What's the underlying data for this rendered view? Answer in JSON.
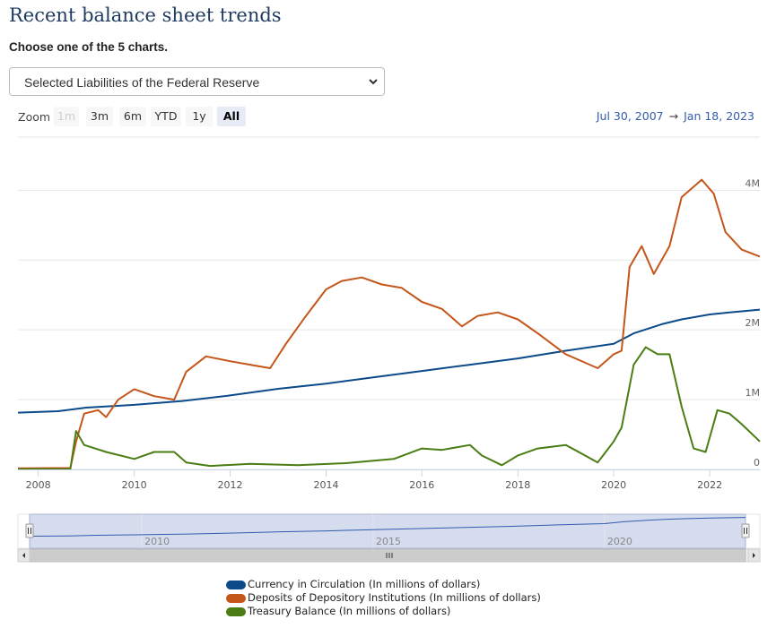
{
  "page": {
    "title": "Recent balance sheet trends",
    "subtitle": "Choose one of the 5 charts.",
    "select_value": "Selected Liabilities of the Federal Reserve"
  },
  "range_selector": {
    "zoom_label": "Zoom",
    "buttons": [
      "1m",
      "3m",
      "6m",
      "YTD",
      "1y",
      "All"
    ],
    "selected": "All",
    "disabled": [
      "1m"
    ],
    "from": "Jul 30, 2007",
    "arrow": "→",
    "to": "Jan 18, 2023"
  },
  "colors": {
    "currency": "#0b4a8b",
    "deposits": "#c4561a",
    "treasury": "#4a7d14",
    "navigator_fill": "#ccd6eb",
    "accent": "#335cad"
  },
  "chart_data": {
    "type": "line",
    "title": "",
    "xlabel": "",
    "ylabel": "",
    "x_ticks": [
      "2008",
      "2010",
      "2012",
      "2014",
      "2016",
      "2018",
      "2020",
      "2022"
    ],
    "y_ticks": [
      "0",
      "1M",
      "2M",
      "",
      "4M"
    ],
    "ylim": [
      0,
      4800000
    ],
    "xlim": [
      "2007-07-30",
      "2023-01-18"
    ],
    "grid": true,
    "legend_position": "bottom",
    "navigator_ticks": [
      "2010",
      "2015",
      "2020"
    ],
    "series": [
      {
        "name": "Currency in Circulation (In millions of dollars)",
        "color": "#0b4a8b",
        "points": [
          [
            "2007-07-30",
            814000
          ],
          [
            "2008-06-01",
            834000
          ],
          [
            "2009-01-01",
            885000
          ],
          [
            "2010-01-01",
            925000
          ],
          [
            "2011-01-01",
            980000
          ],
          [
            "2012-01-01",
            1060000
          ],
          [
            "2013-01-01",
            1155000
          ],
          [
            "2014-01-01",
            1230000
          ],
          [
            "2015-01-01",
            1320000
          ],
          [
            "2016-01-01",
            1410000
          ],
          [
            "2017-01-01",
            1500000
          ],
          [
            "2018-01-01",
            1590000
          ],
          [
            "2019-01-01",
            1700000
          ],
          [
            "2020-01-01",
            1800000
          ],
          [
            "2020-06-01",
            1950000
          ],
          [
            "2021-01-01",
            2080000
          ],
          [
            "2021-06-01",
            2150000
          ],
          [
            "2022-01-01",
            2220000
          ],
          [
            "2022-06-01",
            2250000
          ],
          [
            "2023-01-18",
            2290000
          ]
        ]
      },
      {
        "name": "Deposits of Depository Institutions (In millions of dollars)",
        "color": "#c4561a",
        "points": [
          [
            "2007-07-30",
            15000
          ],
          [
            "2008-09-01",
            20000
          ],
          [
            "2008-10-15",
            400000
          ],
          [
            "2008-12-15",
            800000
          ],
          [
            "2009-04-01",
            850000
          ],
          [
            "2009-06-01",
            750000
          ],
          [
            "2009-09-01",
            1000000
          ],
          [
            "2010-01-01",
            1150000
          ],
          [
            "2010-06-01",
            1050000
          ],
          [
            "2010-11-01",
            1000000
          ],
          [
            "2011-02-01",
            1400000
          ],
          [
            "2011-07-01",
            1620000
          ],
          [
            "2012-01-01",
            1550000
          ],
          [
            "2012-06-01",
            1500000
          ],
          [
            "2012-11-01",
            1450000
          ],
          [
            "2013-03-01",
            1800000
          ],
          [
            "2013-08-01",
            2200000
          ],
          [
            "2014-01-01",
            2580000
          ],
          [
            "2014-05-01",
            2700000
          ],
          [
            "2014-10-01",
            2750000
          ],
          [
            "2015-03-01",
            2650000
          ],
          [
            "2015-08-01",
            2600000
          ],
          [
            "2016-01-01",
            2400000
          ],
          [
            "2016-06-01",
            2300000
          ],
          [
            "2016-11-01",
            2050000
          ],
          [
            "2017-03-01",
            2200000
          ],
          [
            "2017-08-01",
            2250000
          ],
          [
            "2018-01-01",
            2150000
          ],
          [
            "2018-06-01",
            1950000
          ],
          [
            "2019-01-01",
            1650000
          ],
          [
            "2019-09-01",
            1450000
          ],
          [
            "2020-01-01",
            1650000
          ],
          [
            "2020-03-01",
            1700000
          ],
          [
            "2020-05-01",
            2900000
          ],
          [
            "2020-08-01",
            3200000
          ],
          [
            "2020-11-01",
            2800000
          ],
          [
            "2021-03-01",
            3200000
          ],
          [
            "2021-06-01",
            3900000
          ],
          [
            "2021-11-01",
            4150000
          ],
          [
            "2022-02-01",
            3950000
          ],
          [
            "2022-05-01",
            3400000
          ],
          [
            "2022-09-01",
            3150000
          ],
          [
            "2023-01-18",
            3050000
          ]
        ]
      },
      {
        "name": "Treasury Balance (In millions of dollars)",
        "color": "#4a7d14",
        "points": [
          [
            "2007-07-30",
            5000
          ],
          [
            "2008-09-01",
            5000
          ],
          [
            "2008-10-15",
            550000
          ],
          [
            "2008-12-15",
            350000
          ],
          [
            "2009-06-01",
            250000
          ],
          [
            "2010-01-01",
            150000
          ],
          [
            "2010-06-01",
            250000
          ],
          [
            "2010-11-01",
            250000
          ],
          [
            "2011-02-01",
            100000
          ],
          [
            "2011-08-01",
            50000
          ],
          [
            "2012-06-01",
            80000
          ],
          [
            "2013-06-01",
            60000
          ],
          [
            "2014-06-01",
            90000
          ],
          [
            "2015-06-01",
            150000
          ],
          [
            "2016-01-01",
            300000
          ],
          [
            "2016-06-01",
            280000
          ],
          [
            "2017-01-01",
            350000
          ],
          [
            "2017-04-01",
            200000
          ],
          [
            "2017-09-01",
            60000
          ],
          [
            "2018-01-01",
            200000
          ],
          [
            "2018-06-01",
            300000
          ],
          [
            "2019-01-01",
            350000
          ],
          [
            "2019-09-01",
            100000
          ],
          [
            "2020-01-01",
            400000
          ],
          [
            "2020-03-01",
            600000
          ],
          [
            "2020-06-01",
            1500000
          ],
          [
            "2020-09-01",
            1750000
          ],
          [
            "2020-12-01",
            1650000
          ],
          [
            "2021-03-01",
            1650000
          ],
          [
            "2021-06-01",
            900000
          ],
          [
            "2021-09-01",
            300000
          ],
          [
            "2021-12-01",
            250000
          ],
          [
            "2022-03-01",
            850000
          ],
          [
            "2022-06-01",
            800000
          ],
          [
            "2022-09-01",
            650000
          ],
          [
            "2023-01-18",
            400000
          ]
        ]
      }
    ]
  }
}
